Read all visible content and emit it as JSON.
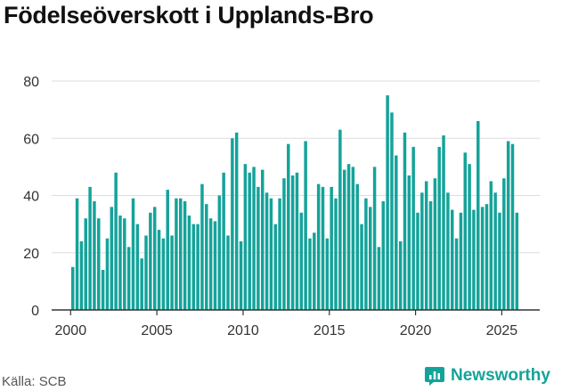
{
  "title": "Födelseöverskott i Upplands-Bro",
  "source": "Källa: SCB",
  "brand": "Newsworthy",
  "colors": {
    "bar": "#14a39a",
    "grid": "#dddddd",
    "axis": "#333333",
    "brand": "#14a39a"
  },
  "chart_data": {
    "type": "bar",
    "title": "Födelseöverskott i Upplands-Bro",
    "xlabel": "",
    "ylabel": "",
    "xlim": [
      1998.9,
      2027.2
    ],
    "ylim": [
      0,
      80
    ],
    "yticks": [
      0,
      20,
      40,
      60,
      80
    ],
    "xticks": [
      2000,
      2005,
      2010,
      2015,
      2020,
      2025
    ],
    "grid": true,
    "start": "2000-01",
    "frequency": "quarterly",
    "values": [
      15,
      39,
      24,
      32,
      43,
      38,
      32,
      14,
      25,
      36,
      48,
      33,
      32,
      22,
      39,
      30,
      18,
      26,
      34,
      36,
      28,
      25,
      42,
      26,
      39,
      39,
      38,
      33,
      30,
      30,
      44,
      37,
      32,
      31,
      40,
      48,
      26,
      60,
      62,
      24,
      51,
      48,
      50,
      43,
      49,
      41,
      39,
      30,
      39,
      46,
      58,
      47,
      48,
      34,
      59,
      25,
      27,
      44,
      43,
      25,
      43,
      39,
      63,
      49,
      51,
      50,
      44,
      30,
      39,
      36,
      50,
      22,
      38,
      75,
      69,
      54,
      24,
      62,
      47,
      57,
      34,
      41,
      45,
      38,
      46,
      57,
      61,
      41,
      35,
      25,
      34,
      55,
      51,
      35,
      66,
      36,
      37,
      45,
      41,
      34,
      46,
      59,
      58,
      34
    ]
  }
}
